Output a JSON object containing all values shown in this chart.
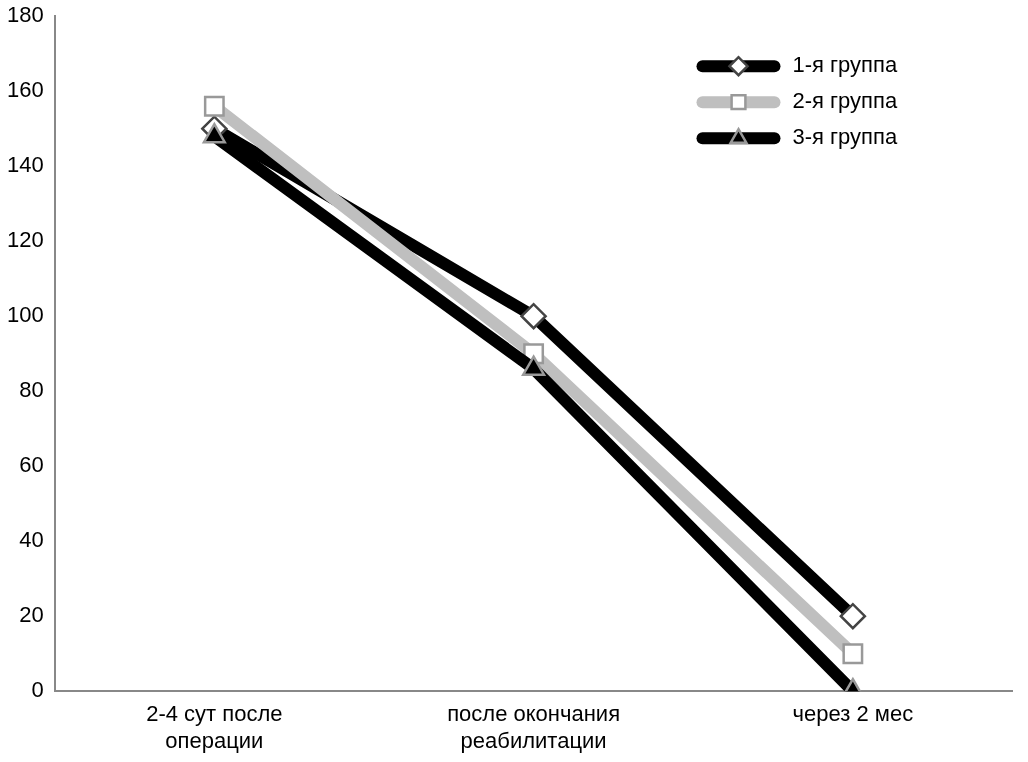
{
  "chart_data": {
    "type": "line",
    "categories": [
      "2-4 сут после операции",
      "после окончания реабилитации",
      "через 2 мес"
    ],
    "series": [
      {
        "name": "1-я группа",
        "color": "#000000",
        "marker": "diamond",
        "values": [
          150,
          100,
          20
        ]
      },
      {
        "name": "2-я группа",
        "color": "#bfbfbf",
        "marker": "square",
        "values": [
          156,
          90,
          10
        ]
      },
      {
        "name": "3-я группа",
        "color": "#000000",
        "marker": "triangle",
        "values": [
          148,
          86,
          0
        ]
      }
    ],
    "ylim": [
      0,
      180
    ],
    "yticks": [
      0,
      20,
      40,
      60,
      80,
      100,
      120,
      140,
      160,
      180
    ],
    "grid": false,
    "legend": "top right",
    "line_style": "solid"
  }
}
